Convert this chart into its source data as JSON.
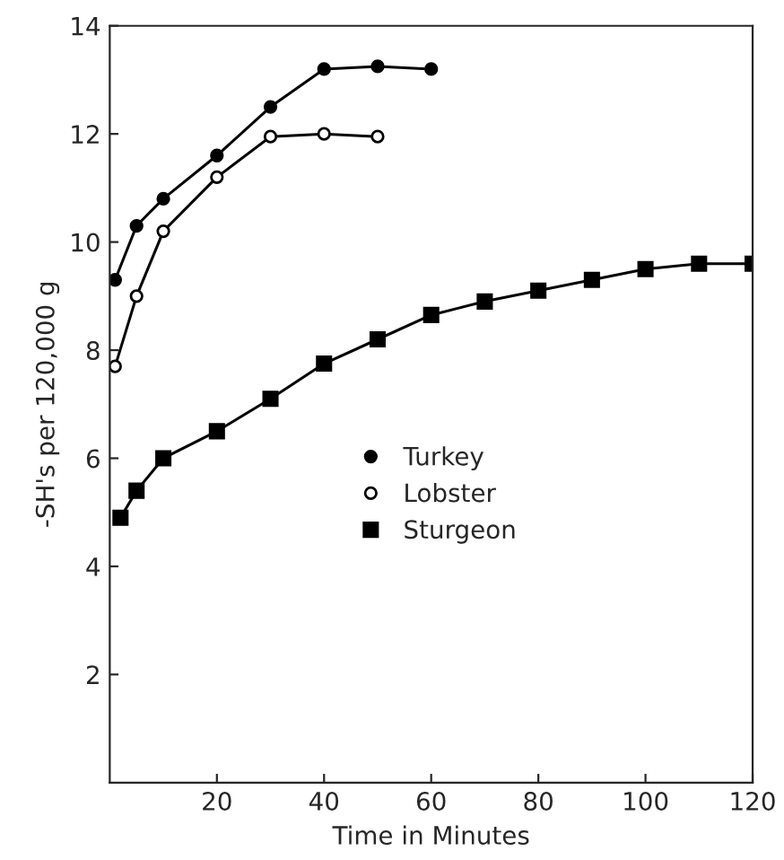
{
  "chart_data": {
    "type": "line",
    "xlabel": "Time in Minutes",
    "ylabel": "-SH's per 120,000 g",
    "xlim": [
      0,
      120
    ],
    "xticks": [
      20,
      40,
      60,
      80,
      100,
      120
    ],
    "ylim": [
      0,
      14
    ],
    "yticks": [
      2,
      4,
      6,
      8,
      10,
      12,
      14
    ],
    "grid": false,
    "legend": "center",
    "line_style": "solid",
    "series": [
      {
        "name": "Turkey",
        "color": "#000000",
        "marker": "circle",
        "x": [
          1,
          5,
          10,
          20,
          30,
          40,
          50,
          60
        ],
        "values": [
          9.3,
          10.3,
          10.8,
          11.6,
          12.5,
          13.2,
          13.25,
          13.2
        ]
      },
      {
        "name": "Lobster",
        "color": "#000000",
        "marker": "circle",
        "x": [
          1,
          5,
          10,
          20,
          30,
          40,
          50
        ],
        "values": [
          7.7,
          9.0,
          10.2,
          11.2,
          11.95,
          12.0,
          11.95
        ]
      },
      {
        "name": "Sturgeon",
        "color": "#000000",
        "marker": "square",
        "x": [
          2,
          5,
          10,
          20,
          30,
          40,
          50,
          60,
          70,
          80,
          90,
          100,
          110,
          120
        ],
        "values": [
          4.9,
          5.4,
          6.0,
          6.5,
          7.1,
          7.75,
          8.2,
          8.65,
          8.9,
          9.1,
          9.3,
          9.5,
          9.6,
          9.6
        ]
      }
    ]
  }
}
